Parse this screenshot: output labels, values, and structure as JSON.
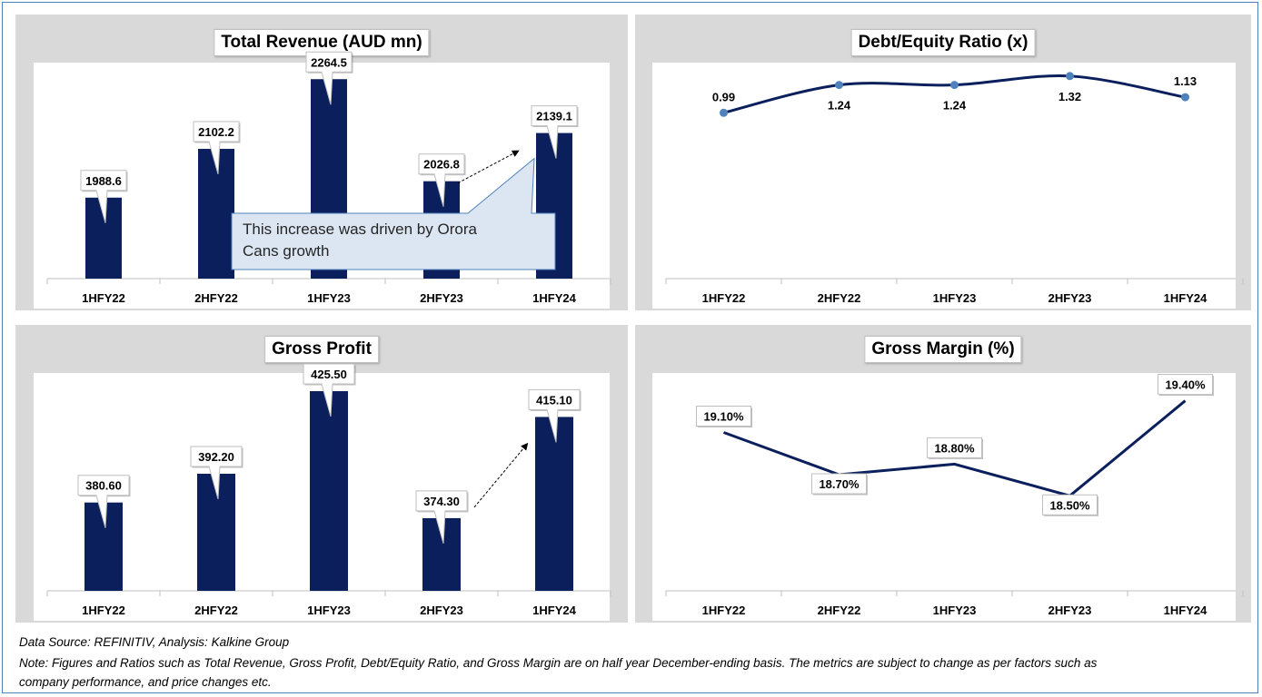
{
  "chart_data": [
    {
      "type": "bar",
      "title": "Total Revenue (AUD mn)",
      "categories": [
        "1HFY22",
        "2HFY22",
        "1HFY23",
        "2HFY23",
        "1HFY24"
      ],
      "values": [
        1988.6,
        2102.2,
        2264.5,
        2026.8,
        2139.1
      ],
      "data_labels": [
        "1988.6",
        "2102.2",
        "2264.5",
        "2026.8",
        "2139.1"
      ],
      "ylim": [
        1800,
        2265
      ],
      "color": "#0b1f5c",
      "annotation": "This increase was driven by Orora Cans growth"
    },
    {
      "type": "line",
      "title": "Debt/Equity Ratio (x)",
      "categories": [
        "1HFY22",
        "2HFY22",
        "1HFY23",
        "2HFY23",
        "1HFY24"
      ],
      "values": [
        0.99,
        1.24,
        1.24,
        1.32,
        1.13
      ],
      "data_labels": [
        "0.99",
        "1.24",
        "1.24",
        "1.32",
        "1.13"
      ],
      "ylim": [
        -0.5,
        1.4
      ],
      "color": "#0b1f5c",
      "marker_color": "#4f81bd"
    },
    {
      "type": "bar",
      "title": "Gross Profit",
      "categories": [
        "1HFY22",
        "2HFY22",
        "1HFY23",
        "2HFY23",
        "1HFY24"
      ],
      "values": [
        380.6,
        392.2,
        425.5,
        374.3,
        415.1
      ],
      "data_labels": [
        "380.60",
        "392.20",
        "425.50",
        "374.30",
        "415.10"
      ],
      "ylim": [
        345,
        425.5
      ],
      "color": "#0b1f5c"
    },
    {
      "type": "line",
      "title": "Gross Margin (%)",
      "categories": [
        "1HFY22",
        "2HFY22",
        "1HFY23",
        "2HFY23",
        "1HFY24"
      ],
      "values": [
        19.1,
        18.7,
        18.8,
        18.5,
        19.4
      ],
      "data_labels": [
        "19.10%",
        "18.70%",
        "18.80%",
        "18.50%",
        "19.40%"
      ],
      "ylim": [
        17.6,
        19.62
      ],
      "color": "#0b1f5c"
    }
  ],
  "footer": {
    "source": "Data Source: REFINITIV, Analysis: Kalkine Group",
    "note_line1": "Note: Figures and Ratios such as Total Revenue, Gross Profit, Debt/Equity Ratio, and Gross Margin are on half year December-ending basis. The metrics are subject to change as per factors such as",
    "note_line2": "company performance, and price changes etc."
  }
}
